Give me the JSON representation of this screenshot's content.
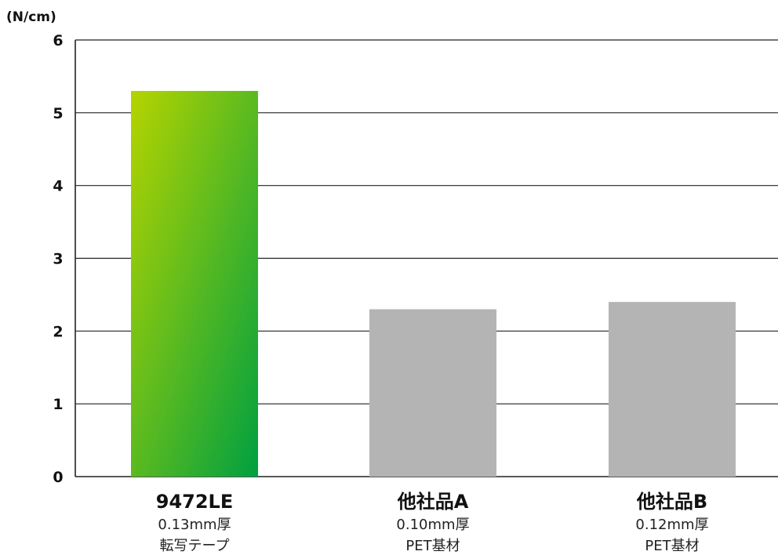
{
  "chart_data": {
    "type": "bar",
    "ylabel": "(N/cm)",
    "ylim": [
      0,
      6
    ],
    "yticks": [
      0,
      1,
      2,
      3,
      4,
      5,
      6
    ],
    "grid": true,
    "categories": [
      {
        "name": "9472LE",
        "line2": "0.13mm厚",
        "line3": "転写テープ"
      },
      {
        "name": "他社品A",
        "line2": "0.10mm厚",
        "line3": "PET基材"
      },
      {
        "name": "他社品B",
        "line2": "0.12mm厚",
        "line3": "PET基材"
      }
    ],
    "values": [
      5.3,
      2.3,
      2.4
    ],
    "colors": {
      "highlight_start": "#b5d400",
      "highlight_end": "#00a040",
      "other": "#b4b4b4",
      "grid": "#222222",
      "axis": "#222222"
    }
  }
}
